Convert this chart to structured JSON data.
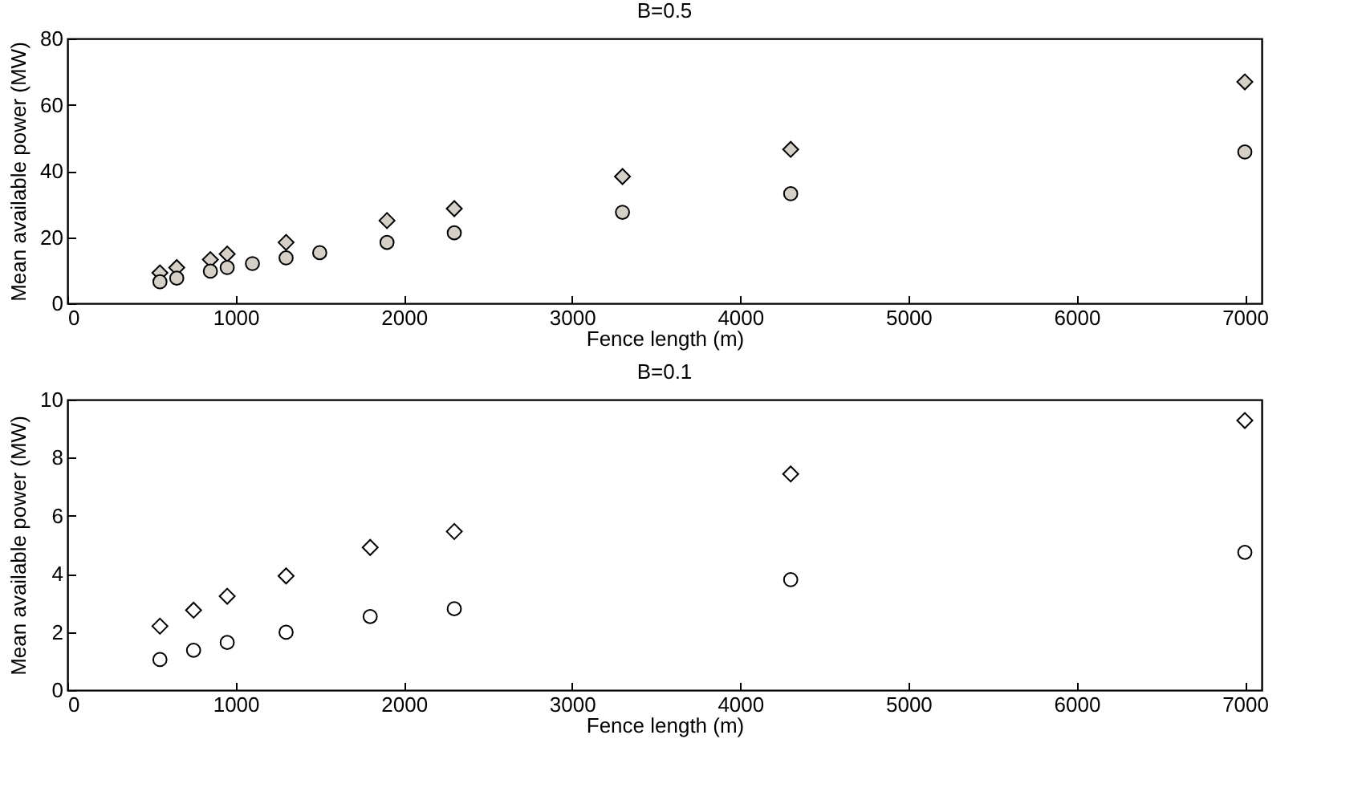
{
  "chart_data": [
    {
      "type": "scatter",
      "title": "B=0.5",
      "xlabel": "Fence length (m)",
      "ylabel": "Mean available power (MW)",
      "xlim": [
        0,
        7100
      ],
      "xticks": [
        0,
        1000,
        2000,
        3000,
        4000,
        5000,
        6000,
        7000
      ],
      "ylim": [
        0,
        80
      ],
      "yticks": [
        0,
        20,
        40,
        60,
        80
      ],
      "grid": false,
      "series": [
        {
          "marker": "diamond",
          "color": "#d4d0c8",
          "x": [
            550,
            650,
            850,
            950,
            1300,
            1900,
            2300,
            3300,
            4300,
            7000
          ],
          "values": [
            9.2,
            10.8,
            13.2,
            14.9,
            18.4,
            25,
            28.6,
            38.3,
            46.5,
            66.9
          ]
        },
        {
          "marker": "circle",
          "color": "#d4d0c8",
          "x": [
            550,
            650,
            850,
            950,
            1100,
            1300,
            1500,
            1900,
            2300,
            3300,
            4300,
            7000
          ],
          "values": [
            6.5,
            7.6,
            9.7,
            10.8,
            12,
            13.7,
            15.3,
            18.4,
            21.3,
            27.5,
            33.1,
            45.7
          ]
        }
      ]
    },
    {
      "type": "scatter",
      "title": "B=0.1",
      "xlabel": "Fence length (m)",
      "ylabel": "Mean available power (MW)",
      "xlim": [
        0,
        7100
      ],
      "xticks": [
        0,
        1000,
        2000,
        3000,
        4000,
        5000,
        6000,
        7000
      ],
      "ylim": [
        0,
        10
      ],
      "yticks": [
        0,
        2,
        4,
        6,
        8,
        10
      ],
      "grid": false,
      "series": [
        {
          "marker": "diamond",
          "color": "#ffffff",
          "x": [
            550,
            750,
            950,
            1300,
            1800,
            2300,
            4300,
            7000
          ],
          "values": [
            2.2,
            2.75,
            3.23,
            3.93,
            4.91,
            5.46,
            7.44,
            9.28
          ]
        },
        {
          "marker": "circle",
          "color": "#ffffff",
          "x": [
            550,
            750,
            950,
            1300,
            1800,
            2300,
            4300,
            7000
          ],
          "values": [
            1.05,
            1.37,
            1.64,
            1.99,
            2.53,
            2.8,
            3.8,
            4.74
          ]
        }
      ]
    }
  ]
}
